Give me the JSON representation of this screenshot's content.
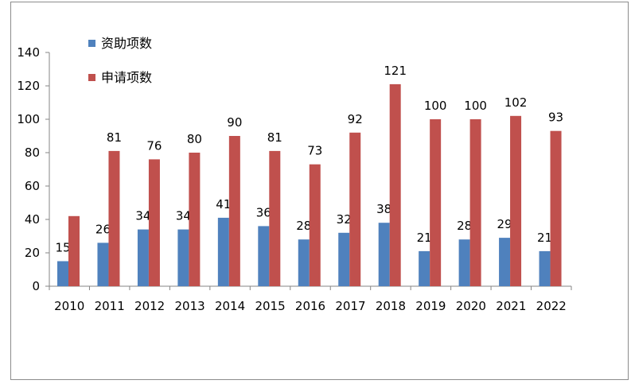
{
  "colors": {
    "series_1": "#4f81bd",
    "series_2": "#c0504d",
    "axis": "#868686",
    "frame": "#8c8c8c"
  },
  "chart_data": {
    "type": "bar",
    "title": "",
    "xlabel": "",
    "ylabel": "",
    "ylim": [
      0,
      140
    ],
    "y_ticks": [
      0,
      20,
      40,
      60,
      80,
      100,
      120,
      140
    ],
    "grid": false,
    "legend_position": "top-left",
    "categories": [
      "2010",
      "2011",
      "2012",
      "2013",
      "2014",
      "2015",
      "2016",
      "2017",
      "2018",
      "2019",
      "2020",
      "2021",
      "2022"
    ],
    "series": [
      {
        "name": "资助项数",
        "color": "#4f81bd",
        "values": [
          15,
          26,
          34,
          34,
          41,
          36,
          28,
          32,
          38,
          21,
          28,
          29,
          21
        ],
        "labels": [
          "15",
          "26",
          "34",
          "34",
          "41",
          "36",
          "28",
          "32",
          "38",
          "21",
          "28",
          "29",
          "21"
        ]
      },
      {
        "name": "申请项数",
        "color": "#c0504d",
        "values": [
          42,
          81,
          76,
          80,
          90,
          81,
          73,
          92,
          121,
          100,
          100,
          102,
          93
        ],
        "labels": [
          "",
          "81",
          "76",
          "80",
          "90",
          "81",
          "73",
          "92",
          "121",
          "100",
          "100",
          "102",
          "93"
        ]
      }
    ]
  }
}
